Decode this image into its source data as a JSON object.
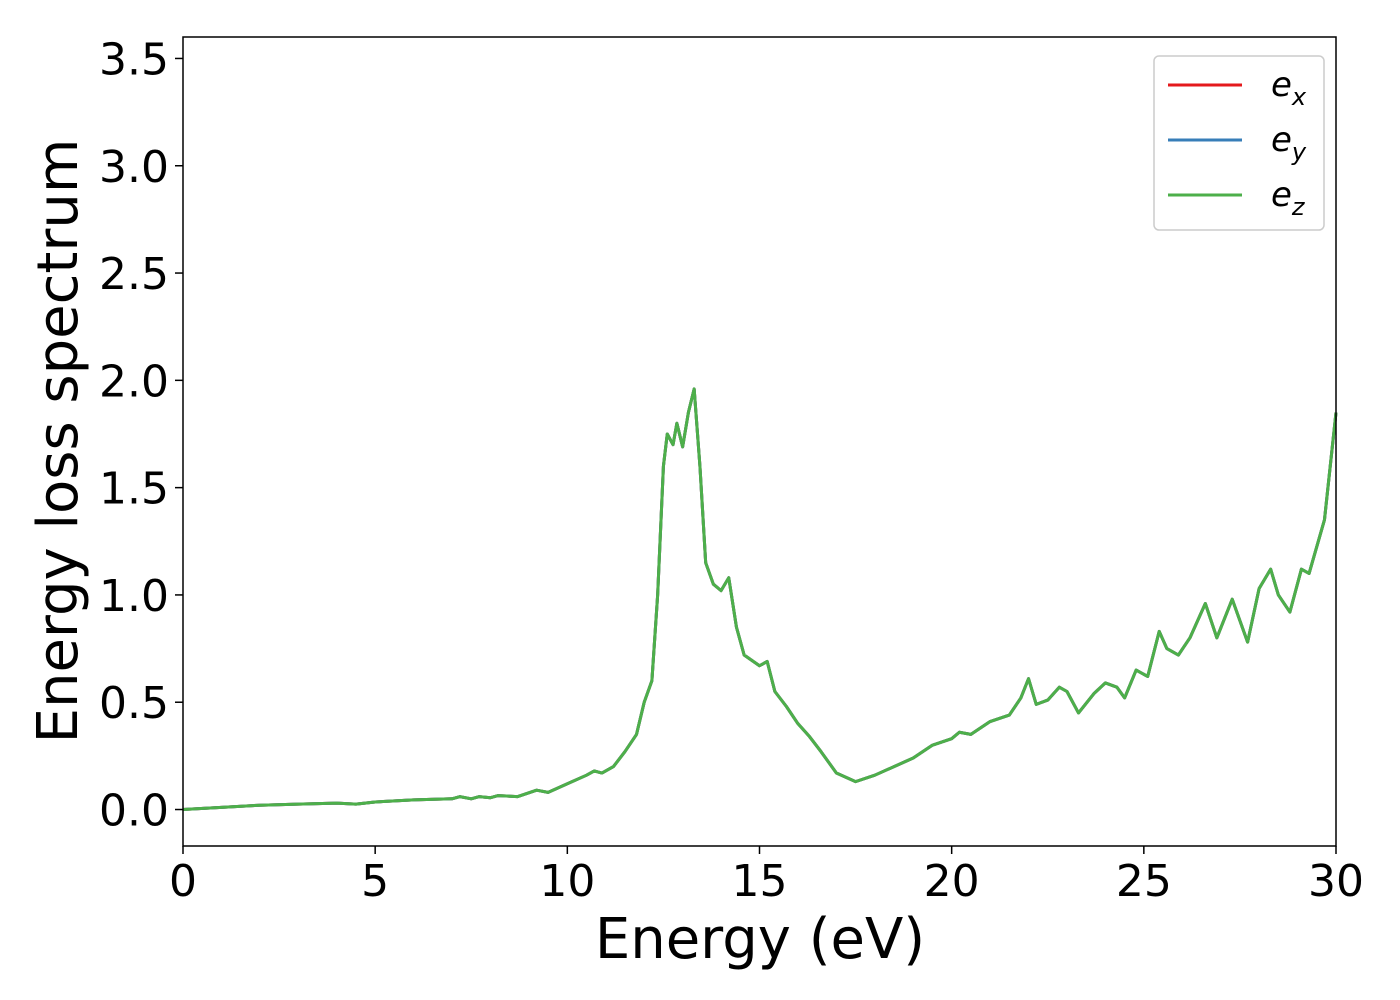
{
  "chart_data": {
    "type": "line",
    "xlabel": "Energy (eV)",
    "ylabel": "Energy loss spectrum",
    "x": [
      0,
      1,
      2,
      3,
      4,
      4.5,
      5,
      6,
      7,
      7.2,
      7.5,
      7.7,
      8,
      8.2,
      8.7,
      9.2,
      9.5,
      10,
      10.5,
      10.7,
      10.9,
      11.2,
      11.5,
      11.8,
      12,
      12.2,
      12.35,
      12.5,
      12.6,
      12.75,
      12.85,
      13,
      13.15,
      13.3,
      13.45,
      13.6,
      13.8,
      14,
      14.2,
      14.4,
      14.6,
      15,
      15.2,
      15.4,
      15.7,
      16,
      16.3,
      16.6,
      17,
      17.5,
      18,
      18.5,
      19,
      19.5,
      20,
      20.2,
      20.5,
      21,
      21.5,
      21.8,
      22,
      22.2,
      22.5,
      22.8,
      23,
      23.3,
      23.7,
      24,
      24.3,
      24.5,
      24.8,
      25.1,
      25.4,
      25.6,
      25.9,
      26.2,
      26.6,
      26.9,
      27.3,
      27.7,
      28,
      28.3,
      28.5,
      28.8,
      29.1,
      29.3,
      29.7,
      30
    ],
    "series": [
      {
        "name": "ex",
        "color": "#e41a1c",
        "values": [
          0,
          0.01,
          0.02,
          0.025,
          0.03,
          0.025,
          0.035,
          0.045,
          0.05,
          0.06,
          0.05,
          0.06,
          0.055,
          0.065,
          0.06,
          0.09,
          0.08,
          0.12,
          0.16,
          0.18,
          0.17,
          0.2,
          0.27,
          0.35,
          0.5,
          0.6,
          1.0,
          1.6,
          1.75,
          1.7,
          1.8,
          1.69,
          1.85,
          1.96,
          1.6,
          1.15,
          1.05,
          1.02,
          1.08,
          0.85,
          0.72,
          0.67,
          0.69,
          0.55,
          0.48,
          0.4,
          0.34,
          0.27,
          0.17,
          0.13,
          0.16,
          0.2,
          0.24,
          0.3,
          0.33,
          0.36,
          0.35,
          0.41,
          0.44,
          0.52,
          0.61,
          0.49,
          0.51,
          0.57,
          0.55,
          0.45,
          0.54,
          0.59,
          0.57,
          0.52,
          0.65,
          0.62,
          0.83,
          0.75,
          0.72,
          0.8,
          0.96,
          0.8,
          0.98,
          0.78,
          1.03,
          1.12,
          1.0,
          0.92,
          1.12,
          1.1,
          1.35,
          1.85
        ]
      },
      {
        "name": "ey",
        "color": "#377eb8",
        "values": [
          0,
          0.01,
          0.02,
          0.025,
          0.03,
          0.025,
          0.035,
          0.045,
          0.05,
          0.06,
          0.05,
          0.06,
          0.055,
          0.065,
          0.06,
          0.09,
          0.08,
          0.12,
          0.16,
          0.18,
          0.17,
          0.2,
          0.27,
          0.35,
          0.5,
          0.6,
          1.0,
          1.6,
          1.75,
          1.7,
          1.8,
          1.69,
          1.85,
          1.96,
          1.6,
          1.15,
          1.05,
          1.02,
          1.08,
          0.85,
          0.72,
          0.67,
          0.69,
          0.55,
          0.48,
          0.4,
          0.34,
          0.27,
          0.17,
          0.13,
          0.16,
          0.2,
          0.24,
          0.3,
          0.33,
          0.36,
          0.35,
          0.41,
          0.44,
          0.52,
          0.61,
          0.49,
          0.51,
          0.57,
          0.55,
          0.45,
          0.54,
          0.59,
          0.57,
          0.52,
          0.65,
          0.62,
          0.83,
          0.75,
          0.72,
          0.8,
          0.96,
          0.8,
          0.98,
          0.78,
          1.03,
          1.12,
          1.0,
          0.92,
          1.12,
          1.1,
          1.35,
          1.85
        ]
      },
      {
        "name": "ez",
        "color": "#4daf4a",
        "values": [
          0,
          0.01,
          0.02,
          0.025,
          0.03,
          0.025,
          0.035,
          0.045,
          0.05,
          0.06,
          0.05,
          0.06,
          0.055,
          0.065,
          0.06,
          0.09,
          0.08,
          0.12,
          0.16,
          0.18,
          0.17,
          0.2,
          0.27,
          0.35,
          0.5,
          0.6,
          1.0,
          1.6,
          1.75,
          1.7,
          1.8,
          1.69,
          1.85,
          1.96,
          1.6,
          1.15,
          1.05,
          1.02,
          1.08,
          0.85,
          0.72,
          0.67,
          0.69,
          0.55,
          0.48,
          0.4,
          0.34,
          0.27,
          0.17,
          0.13,
          0.16,
          0.2,
          0.24,
          0.3,
          0.33,
          0.36,
          0.35,
          0.41,
          0.44,
          0.52,
          0.61,
          0.49,
          0.51,
          0.57,
          0.55,
          0.45,
          0.54,
          0.59,
          0.57,
          0.52,
          0.65,
          0.62,
          0.83,
          0.75,
          0.72,
          0.8,
          0.96,
          0.8,
          0.98,
          0.78,
          1.03,
          1.12,
          1.0,
          0.92,
          1.12,
          1.1,
          1.35,
          1.85
        ]
      }
    ],
    "xlim": [
      0,
      30
    ],
    "xticks": [
      0,
      5,
      10,
      15,
      20,
      25,
      30
    ],
    "ylim": [
      -0.17,
      3.6
    ],
    "yticks": [
      {
        "value": 0,
        "label": "0.0"
      },
      0.5,
      {
        "value": 1,
        "label": "1.0"
      },
      1.5,
      {
        "value": 2,
        "label": "2.0"
      },
      2.5,
      {
        "value": 3,
        "label": "3.0"
      },
      3.5
    ],
    "grid": false,
    "legend": "upper right"
  }
}
